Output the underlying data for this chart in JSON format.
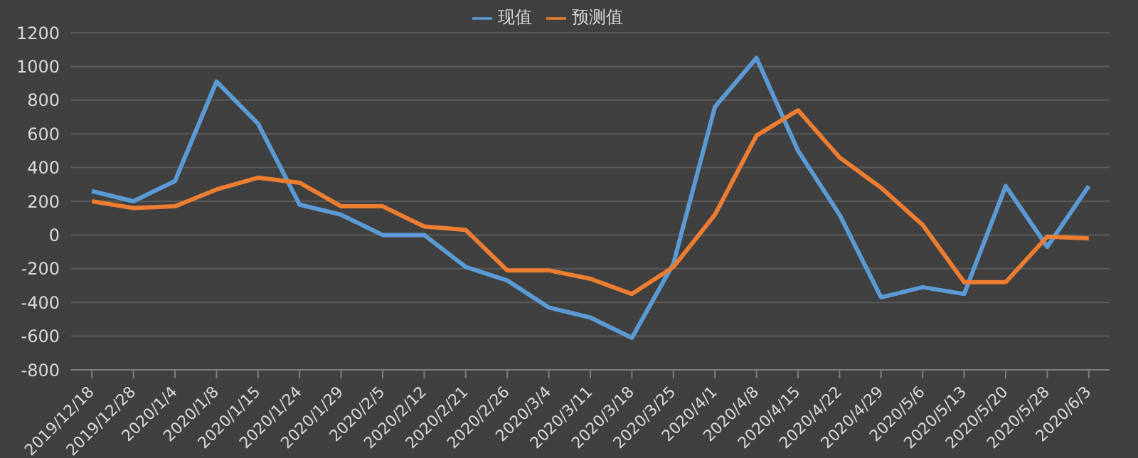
{
  "chart_data": {
    "type": "line",
    "categories": [
      "2019/12/18",
      "2019/12/28",
      "2020/1/4",
      "2020/1/8",
      "2020/1/15",
      "2020/1/24",
      "2020/1/29",
      "2020/2/5",
      "2020/2/12",
      "2020/2/21",
      "2020/2/26",
      "2020/3/4",
      "2020/3/11",
      "2020/3/18",
      "2020/3/25",
      "2020/4/1",
      "2020/4/8",
      "2020/4/15",
      "2020/4/22",
      "2020/4/29",
      "2020/5/6",
      "2020/5/13",
      "2020/5/20",
      "2020/5/28",
      "2020/6/3"
    ],
    "series": [
      {
        "name": "现值",
        "color": "#5b9bd5",
        "values": [
          260,
          200,
          320,
          910,
          660,
          180,
          120,
          0,
          0,
          -190,
          -270,
          -430,
          -490,
          -610,
          -170,
          760,
          1050,
          500,
          120,
          -370,
          -310,
          -350,
          290,
          -70,
          290
        ]
      },
      {
        "name": "预测值",
        "color": "#ed7d31",
        "values": [
          200,
          160,
          170,
          270,
          340,
          310,
          170,
          170,
          50,
          30,
          -210,
          -210,
          -260,
          -350,
          -190,
          120,
          590,
          740,
          460,
          280,
          60,
          -280,
          -280,
          -10,
          -20
        ]
      }
    ],
    "ylim": [
      -800,
      1200
    ],
    "yticks": [
      -800,
      -600,
      -400,
      -200,
      0,
      200,
      400,
      600,
      800,
      1000,
      1200
    ],
    "grid": "y",
    "legend": "top",
    "marker": "none",
    "line_style": "solid"
  }
}
